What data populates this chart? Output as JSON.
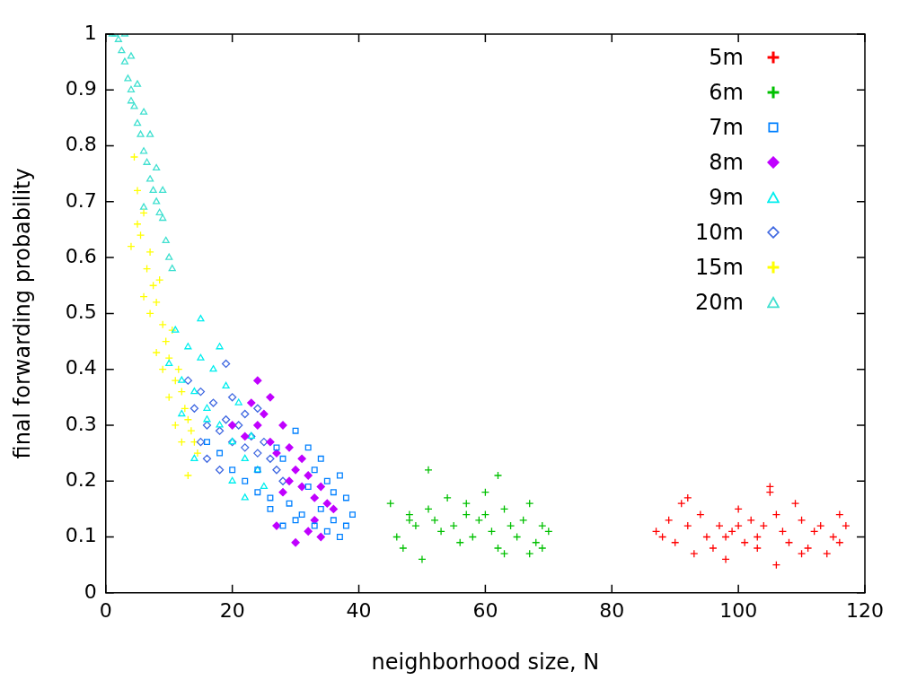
{
  "chart_data": {
    "type": "scatter",
    "xlabel": "neighborhood size, N",
    "ylabel": "final forwarding probability",
    "xlim": [
      0,
      120
    ],
    "xticks": [
      0,
      20,
      40,
      60,
      80,
      100,
      120
    ],
    "ylim": [
      0,
      1
    ],
    "yticks": [
      0,
      0.1,
      0.2,
      0.3,
      0.4,
      0.5,
      0.6,
      0.7,
      0.8,
      0.9,
      1
    ],
    "grid": false,
    "legend": "top right",
    "series": [
      {
        "name": "5m",
        "color": "#ff0000",
        "marker": "cross",
        "x": [
          87,
          88,
          89,
          90,
          91,
          92,
          93,
          94,
          95,
          96,
          97,
          98,
          99,
          100,
          101,
          102,
          103,
          104,
          105,
          106,
          107,
          108,
          109,
          110,
          111,
          112,
          113,
          114,
          115,
          116,
          117,
          105,
          106,
          100,
          103,
          110,
          116,
          92,
          98
        ],
        "values": [
          0.11,
          0.1,
          0.13,
          0.09,
          0.16,
          0.12,
          0.07,
          0.14,
          0.1,
          0.08,
          0.12,
          0.06,
          0.11,
          0.15,
          0.09,
          0.13,
          0.1,
          0.12,
          0.18,
          0.14,
          0.11,
          0.09,
          0.16,
          0.13,
          0.08,
          0.11,
          0.12,
          0.07,
          0.1,
          0.14,
          0.12,
          0.19,
          0.05,
          0.12,
          0.08,
          0.07,
          0.09,
          0.17,
          0.1
        ]
      },
      {
        "name": "6m",
        "color": "#00c000",
        "marker": "cross",
        "x": [
          45,
          46,
          47,
          48,
          49,
          50,
          51,
          52,
          53,
          54,
          55,
          56,
          57,
          58,
          59,
          60,
          61,
          62,
          63,
          64,
          65,
          66,
          67,
          68,
          69,
          70,
          51,
          62,
          63,
          60,
          48,
          57,
          67,
          69
        ],
        "values": [
          0.16,
          0.1,
          0.08,
          0.14,
          0.12,
          0.06,
          0.15,
          0.13,
          0.11,
          0.17,
          0.12,
          0.09,
          0.14,
          0.1,
          0.13,
          0.18,
          0.11,
          0.08,
          0.15,
          0.12,
          0.1,
          0.13,
          0.16,
          0.09,
          0.12,
          0.11,
          0.22,
          0.21,
          0.07,
          0.14,
          0.13,
          0.16,
          0.07,
          0.08
        ]
      },
      {
        "name": "7m",
        "color": "#0080ff",
        "marker": "square",
        "x": [
          16,
          18,
          20,
          22,
          24,
          26,
          27,
          28,
          29,
          30,
          31,
          32,
          33,
          34,
          35,
          36,
          37,
          38,
          39,
          38,
          37,
          36,
          35,
          34,
          33,
          32,
          30,
          28,
          26,
          24
        ],
        "values": [
          0.27,
          0.25,
          0.22,
          0.2,
          0.18,
          0.17,
          0.26,
          0.24,
          0.16,
          0.29,
          0.14,
          0.26,
          0.22,
          0.24,
          0.2,
          0.18,
          0.21,
          0.17,
          0.14,
          0.12,
          0.1,
          0.13,
          0.11,
          0.15,
          0.12,
          0.19,
          0.13,
          0.12,
          0.15,
          0.22
        ]
      },
      {
        "name": "8m",
        "color": "#c000ff",
        "marker": "diamond",
        "x": [
          20,
          22,
          23,
          24,
          25,
          26,
          27,
          28,
          29,
          30,
          31,
          32,
          33,
          34,
          35,
          36,
          24,
          26,
          27,
          30,
          32,
          34,
          29,
          31,
          28,
          33
        ],
        "values": [
          0.3,
          0.28,
          0.34,
          0.3,
          0.32,
          0.27,
          0.25,
          0.3,
          0.26,
          0.22,
          0.19,
          0.21,
          0.17,
          0.19,
          0.16,
          0.15,
          0.38,
          0.35,
          0.12,
          0.09,
          0.11,
          0.1,
          0.2,
          0.24,
          0.18,
          0.13
        ]
      },
      {
        "name": "9m",
        "color": "#00eeee",
        "marker": "triangle",
        "x": [
          10,
          11,
          12,
          13,
          14,
          15,
          16,
          17,
          18,
          19,
          20,
          21,
          22,
          23,
          24,
          25,
          14,
          16,
          18,
          20,
          22,
          12,
          15
        ],
        "values": [
          0.41,
          0.47,
          0.38,
          0.44,
          0.36,
          0.49,
          0.33,
          0.4,
          0.3,
          0.37,
          0.27,
          0.34,
          0.24,
          0.28,
          0.22,
          0.19,
          0.24,
          0.31,
          0.44,
          0.2,
          0.17,
          0.32,
          0.42
        ]
      },
      {
        "name": "10m",
        "color": "#4169e1",
        "marker": "diamond",
        "x": [
          13,
          14,
          15,
          16,
          17,
          18,
          19,
          20,
          21,
          22,
          23,
          24,
          25,
          26,
          27,
          28,
          16,
          18,
          20,
          22,
          15,
          24,
          19
        ],
        "values": [
          0.38,
          0.33,
          0.36,
          0.3,
          0.34,
          0.29,
          0.31,
          0.27,
          0.3,
          0.26,
          0.28,
          0.25,
          0.27,
          0.24,
          0.22,
          0.2,
          0.24,
          0.22,
          0.35,
          0.32,
          0.27,
          0.33,
          0.41
        ]
      },
      {
        "name": "15m",
        "color": "#ffff00",
        "marker": "cross",
        "x": [
          4,
          4.5,
          5,
          5.5,
          6,
          6.5,
          7,
          7.5,
          8,
          8.5,
          9,
          9.5,
          10,
          10.5,
          11,
          11.5,
          12,
          12.5,
          13,
          13.5,
          14,
          14.5,
          5,
          6,
          7,
          8,
          9,
          10,
          11,
          12,
          13
        ],
        "values": [
          0.62,
          0.78,
          0.72,
          0.64,
          0.68,
          0.58,
          0.61,
          0.55,
          0.52,
          0.56,
          0.48,
          0.45,
          0.42,
          0.47,
          0.38,
          0.4,
          0.36,
          0.33,
          0.31,
          0.29,
          0.27,
          0.25,
          0.66,
          0.53,
          0.5,
          0.43,
          0.4,
          0.35,
          0.3,
          0.27,
          0.21
        ]
      },
      {
        "name": "20m",
        "color": "#40e0d0",
        "marker": "triangle",
        "x": [
          1,
          1.5,
          2,
          2.5,
          3,
          3.5,
          4,
          4.5,
          5,
          5.5,
          6,
          6.5,
          7,
          7.5,
          8,
          8.5,
          9,
          9.5,
          10,
          10.5,
          3,
          4,
          5,
          6,
          7,
          8,
          9,
          6,
          4
        ],
        "values": [
          1,
          1,
          0.99,
          0.97,
          0.95,
          0.92,
          0.9,
          0.87,
          0.84,
          0.82,
          0.79,
          0.77,
          0.74,
          0.72,
          0.7,
          0.68,
          0.67,
          0.63,
          0.6,
          0.58,
          1,
          0.96,
          0.91,
          0.86,
          0.82,
          0.76,
          0.72,
          0.69,
          0.88
        ]
      }
    ]
  }
}
